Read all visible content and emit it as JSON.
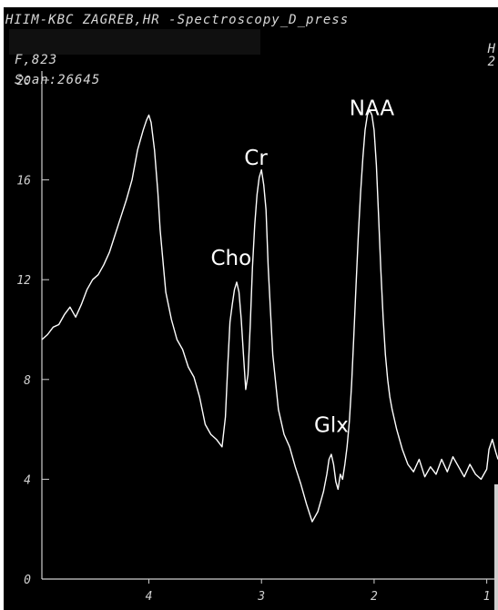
{
  "header": {
    "title": "HIIM-KBC ZAGREB,HR -Spectroscopy_D_press",
    "right_top": "H",
    "field_strength": "F,823",
    "scan": "Scan:26645",
    "right_info": "2"
  },
  "chart_data": {
    "type": "line",
    "title": "",
    "xlabel": "",
    "ylabel": "",
    "x_reversed": true,
    "xlim": [
      4.95,
      0.9
    ],
    "ylim": [
      0,
      20
    ],
    "x_ticks": [
      "4",
      "3",
      "2",
      "1"
    ],
    "y_ticks": [
      "0",
      "4",
      "8",
      "12",
      "16",
      "20"
    ],
    "grid": false,
    "colors": {
      "background": "#000000",
      "line": "#ffffff",
      "axis": "#cfcfcf"
    },
    "peak_labels": [
      {
        "text": "NAA",
        "x": 2.02,
        "y": 18.6
      },
      {
        "text": "Cr",
        "x": 3.05,
        "y": 16.6
      },
      {
        "text": "Cho",
        "x": 3.27,
        "y": 12.6
      },
      {
        "text": "Glx",
        "x": 2.38,
        "y": 5.9
      }
    ],
    "series": [
      {
        "x": [
          4.95,
          4.9,
          4.85,
          4.8,
          4.75,
          4.7,
          4.65,
          4.6,
          4.55,
          4.5,
          4.45,
          4.4,
          4.35,
          4.3,
          4.25,
          4.2,
          4.15,
          4.1,
          4.05,
          4.02,
          4.0,
          3.98,
          3.95,
          3.92,
          3.9,
          3.87,
          3.85,
          3.8,
          3.75,
          3.7,
          3.65,
          3.6,
          3.55,
          3.5,
          3.45,
          3.4,
          3.35,
          3.32,
          3.3,
          3.28,
          3.26,
          3.24,
          3.22,
          3.2,
          3.18,
          3.16,
          3.14,
          3.12,
          3.1,
          3.08,
          3.06,
          3.04,
          3.02,
          3.0,
          2.98,
          2.96,
          2.94,
          2.9,
          2.85,
          2.8,
          2.75,
          2.7,
          2.65,
          2.6,
          2.55,
          2.5,
          2.45,
          2.42,
          2.4,
          2.38,
          2.36,
          2.34,
          2.32,
          2.3,
          2.28,
          2.26,
          2.24,
          2.22,
          2.2,
          2.18,
          2.16,
          2.14,
          2.12,
          2.1,
          2.08,
          2.06,
          2.04,
          2.02,
          2.0,
          1.98,
          1.96,
          1.94,
          1.92,
          1.9,
          1.88,
          1.86,
          1.84,
          1.82,
          1.8,
          1.75,
          1.7,
          1.65,
          1.6,
          1.55,
          1.5,
          1.45,
          1.4,
          1.35,
          1.3,
          1.25,
          1.2,
          1.15,
          1.1,
          1.05,
          1.0,
          0.98,
          0.95,
          0.92,
          0.9
        ],
        "y": [
          9.6,
          9.8,
          10.1,
          10.2,
          10.6,
          10.9,
          10.5,
          11.0,
          11.6,
          12.0,
          12.2,
          12.6,
          13.1,
          13.8,
          14.5,
          15.2,
          16.0,
          17.2,
          18.0,
          18.4,
          18.6,
          18.3,
          17.2,
          15.5,
          14.0,
          12.5,
          11.5,
          10.4,
          9.6,
          9.2,
          8.5,
          8.1,
          7.3,
          6.2,
          5.8,
          5.6,
          5.3,
          6.5,
          8.5,
          10.3,
          11.0,
          11.6,
          11.9,
          11.5,
          10.4,
          9.0,
          7.6,
          8.2,
          10.2,
          12.5,
          14.2,
          15.4,
          16.1,
          16.4,
          15.8,
          14.8,
          12.5,
          9.0,
          6.8,
          5.8,
          5.3,
          4.5,
          3.8,
          3.0,
          2.3,
          2.7,
          3.5,
          4.2,
          4.8,
          5.0,
          4.6,
          3.9,
          3.6,
          4.2,
          4.0,
          4.6,
          5.3,
          6.3,
          7.8,
          9.8,
          11.8,
          13.8,
          15.5,
          16.9,
          18.0,
          18.6,
          18.8,
          18.6,
          18.0,
          16.6,
          14.5,
          12.4,
          10.5,
          9.0,
          8.0,
          7.3,
          6.8,
          6.4,
          6.0,
          5.2,
          4.6,
          4.3,
          4.8,
          4.1,
          4.5,
          4.2,
          4.8,
          4.3,
          4.9,
          4.5,
          4.1,
          4.6,
          4.2,
          4.0,
          4.4,
          5.2,
          5.6,
          5.1,
          4.8
        ]
      }
    ]
  }
}
